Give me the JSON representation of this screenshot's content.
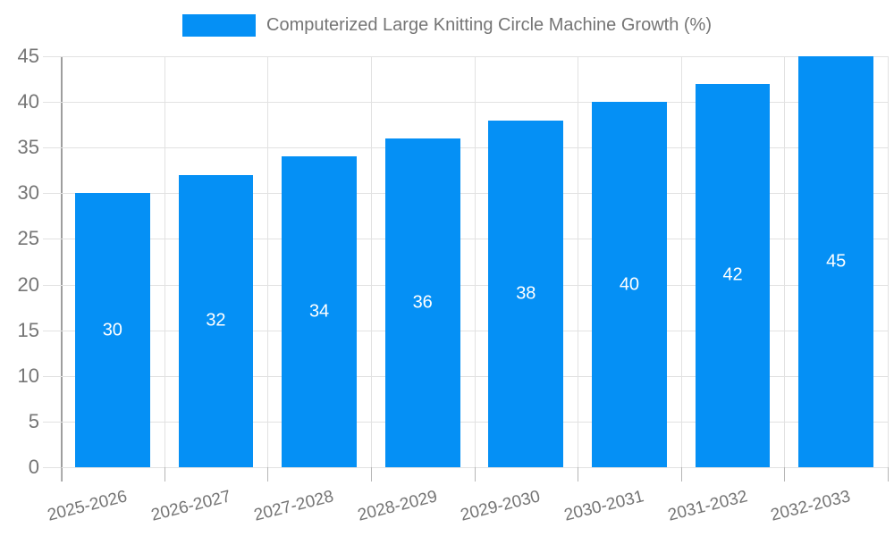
{
  "chart_data": {
    "type": "bar",
    "title": "Computerized Large Knitting Circle Machine Growth (%)",
    "categories": [
      "2025-2026",
      "2026-2027",
      "2027-2028",
      "2028-2029",
      "2029-2030",
      "2030-2031",
      "2031-2032",
      "2032-2033"
    ],
    "values": [
      30,
      32,
      34,
      36,
      38,
      40,
      42,
      45
    ],
    "value_labels": [
      "30",
      "32",
      "34",
      "36",
      "38",
      "40",
      "42",
      "45"
    ],
    "xlabel": "",
    "ylabel": "",
    "ylim": [
      0,
      45
    ],
    "ytick_step": 5,
    "yticks": [
      "0",
      "5",
      "10",
      "15",
      "20",
      "25",
      "30",
      "35",
      "40",
      "45"
    ],
    "grid": true,
    "legend_position": "top",
    "colors": {
      "bar": "#0590f5",
      "value_label": "#ffffff",
      "axis_text": "#757575",
      "grid_line": "#e2e2e2",
      "axis_line": "#9e9e9e",
      "tick_line": "#b6b6b6",
      "background": "#ffffff"
    }
  }
}
